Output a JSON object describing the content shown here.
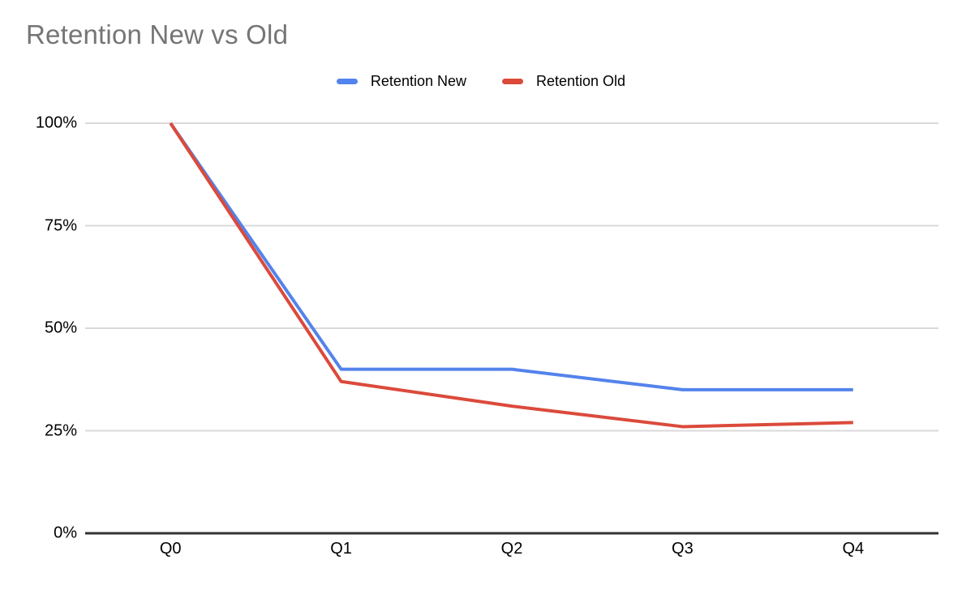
{
  "chart_data": {
    "type": "line",
    "title": "Retention New vs Old",
    "categories": [
      "Q0",
      "Q1",
      "Q2",
      "Q3",
      "Q4"
    ],
    "series": [
      {
        "name": "Retention New",
        "color": "#5383EC",
        "values": [
          100,
          40,
          40,
          35,
          35
        ]
      },
      {
        "name": "Retention Old",
        "color": "#DB4A3B",
        "values": [
          100,
          37,
          31,
          26,
          27
        ]
      }
    ],
    "xlabel": "",
    "ylabel": "",
    "ylim": [
      0,
      100
    ],
    "y_ticks": [
      0,
      25,
      50,
      75,
      100
    ],
    "y_tick_labels": [
      "0%",
      "25%",
      "50%",
      "75%",
      "100%"
    ],
    "unit": "%",
    "grid": true,
    "legend_position": "top",
    "colors": {
      "title": "#757575",
      "gridline": "#DADADA",
      "axis": "#333333",
      "tick_label": "#000000"
    }
  }
}
